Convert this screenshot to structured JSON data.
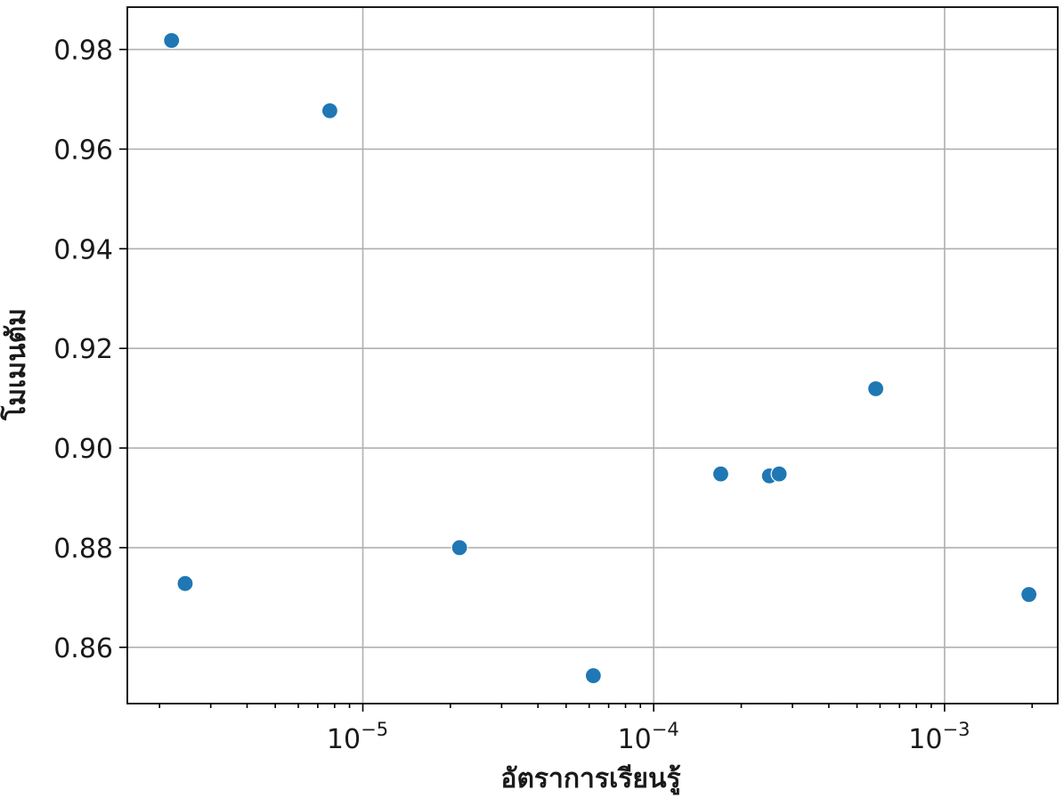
{
  "chart_data": {
    "type": "scatter",
    "title": "",
    "xlabel": "อัตราการเรียนรู้",
    "ylabel": "โมเมนตัม",
    "xscale": "log",
    "xlim": [
      1.55e-06,
      0.00245
    ],
    "ylim": [
      0.8487,
      0.9885
    ],
    "grid": true,
    "legend": "none",
    "marker_color": "#1f77b4",
    "x_ticks": [
      {
        "value": 1e-05,
        "base": "10",
        "exp": "−5"
      },
      {
        "value": 0.0001,
        "base": "10",
        "exp": "−4"
      },
      {
        "value": 0.001,
        "base": "10",
        "exp": "−3"
      }
    ],
    "y_ticks": [
      {
        "value": 0.86,
        "label": "0.86"
      },
      {
        "value": 0.88,
        "label": "0.88"
      },
      {
        "value": 0.9,
        "label": "0.90"
      },
      {
        "value": 0.92,
        "label": "0.92"
      },
      {
        "value": 0.94,
        "label": "0.94"
      },
      {
        "value": 0.96,
        "label": "0.96"
      },
      {
        "value": 0.98,
        "label": "0.98"
      }
    ],
    "points": [
      {
        "x": 2.2e-06,
        "y": 0.9818
      },
      {
        "x": 2.45e-06,
        "y": 0.8728
      },
      {
        "x": 7.7e-06,
        "y": 0.9677
      },
      {
        "x": 2.15e-05,
        "y": 0.88
      },
      {
        "x": 6.2e-05,
        "y": 0.8543
      },
      {
        "x": 0.00017,
        "y": 0.8948
      },
      {
        "x": 0.00025,
        "y": 0.8944
      },
      {
        "x": 0.00027,
        "y": 0.8948
      },
      {
        "x": 0.00058,
        "y": 0.9119
      },
      {
        "x": 0.00195,
        "y": 0.8706
      }
    ]
  }
}
